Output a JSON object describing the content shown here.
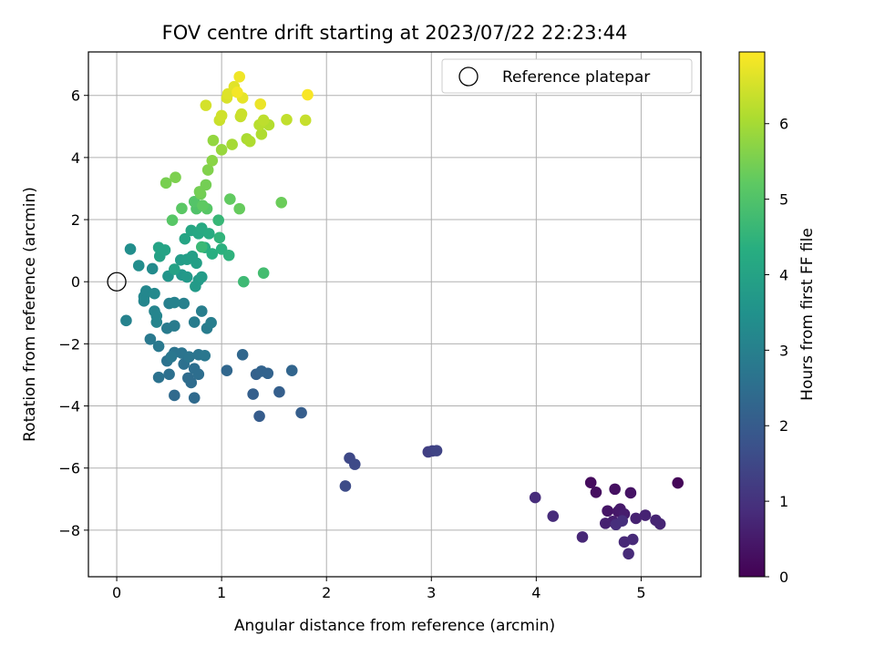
{
  "chart_data": {
    "type": "scatter",
    "title": "FOV centre drift starting at 2023/07/22 22:23:44",
    "xlabel": "Angular distance from reference (arcmin)",
    "ylabel": "Rotation from reference (arcmin)",
    "xlim": [
      -0.27,
      5.57
    ],
    "ylim": [
      -9.5,
      7.4
    ],
    "x_ticks": [
      0,
      1,
      2,
      3,
      4,
      5
    ],
    "y_ticks": [
      -8,
      -6,
      -4,
      -2,
      0,
      2,
      4,
      6
    ],
    "grid": true,
    "legend": {
      "position": "top-right",
      "entries": [
        "Reference platepar"
      ]
    },
    "reference_point": {
      "x": 0,
      "y": 0
    },
    "colorbar": {
      "label": "Hours from first FF file",
      "colormap": "viridis",
      "range": [
        0,
        6.95
      ],
      "ticks": [
        0,
        1,
        2,
        3,
        4,
        5,
        6
      ]
    },
    "points": [
      [
        5.35,
        -6.48,
        0.1
      ],
      [
        4.52,
        -6.47,
        0.2
      ],
      [
        4.57,
        -6.78,
        0.25
      ],
      [
        4.75,
        -6.68,
        0.3
      ],
      [
        4.9,
        -6.8,
        0.35
      ],
      [
        4.68,
        -7.38,
        0.4
      ],
      [
        4.78,
        -7.4,
        0.45
      ],
      [
        4.8,
        -7.32,
        0.5
      ],
      [
        4.84,
        -7.48,
        0.55
      ],
      [
        4.73,
        -7.72,
        0.6
      ],
      [
        4.66,
        -7.78,
        0.62
      ],
      [
        4.95,
        -7.62,
        0.65
      ],
      [
        5.04,
        -7.52,
        0.68
      ],
      [
        5.14,
        -7.68,
        0.7
      ],
      [
        5.18,
        -7.8,
        0.72
      ],
      [
        4.44,
        -8.22,
        0.75
      ],
      [
        4.84,
        -8.38,
        0.78
      ],
      [
        4.92,
        -8.3,
        0.8
      ],
      [
        4.88,
        -8.76,
        0.82
      ],
      [
        4.16,
        -7.55,
        0.85
      ],
      [
        3.99,
        -6.95,
        0.88
      ],
      [
        4.76,
        -7.82,
        0.9
      ],
      [
        4.82,
        -7.7,
        0.92
      ],
      [
        2.97,
        -5.48,
        1.3
      ],
      [
        3.01,
        -5.45,
        1.35
      ],
      [
        3.05,
        -5.44,
        1.4
      ],
      [
        2.22,
        -5.68,
        1.5
      ],
      [
        2.27,
        -5.88,
        1.55
      ],
      [
        2.18,
        -6.58,
        1.6
      ],
      [
        1.36,
        -4.33,
        2.0
      ],
      [
        1.76,
        -4.22,
        2.05
      ],
      [
        1.55,
        -3.55,
        2.1
      ],
      [
        1.3,
        -3.62,
        2.1
      ],
      [
        1.33,
        -2.98,
        2.15
      ],
      [
        1.38,
        -2.88,
        2.2
      ],
      [
        1.44,
        -2.95,
        2.2
      ],
      [
        1.67,
        -2.86,
        2.25
      ],
      [
        1.05,
        -2.86,
        2.3
      ],
      [
        1.2,
        -2.35,
        2.3
      ],
      [
        0.74,
        -3.74,
        2.4
      ],
      [
        0.55,
        -3.66,
        2.4
      ],
      [
        0.68,
        -3.1,
        2.45
      ],
      [
        0.71,
        -3.25,
        2.45
      ],
      [
        0.78,
        -2.98,
        2.5
      ],
      [
        0.74,
        -2.8,
        2.5
      ],
      [
        0.64,
        -2.65,
        2.55
      ],
      [
        0.5,
        -2.98,
        2.55
      ],
      [
        0.4,
        -3.08,
        2.6
      ],
      [
        0.48,
        -2.55,
        2.6
      ],
      [
        0.55,
        -2.28,
        2.65
      ],
      [
        0.62,
        -2.3,
        2.65
      ],
      [
        0.69,
        -2.42,
        2.7
      ],
      [
        0.78,
        -2.35,
        2.7
      ],
      [
        0.84,
        -2.38,
        2.75
      ],
      [
        0.52,
        -2.42,
        2.75
      ],
      [
        0.4,
        -2.08,
        2.8
      ],
      [
        0.32,
        -1.85,
        2.8
      ],
      [
        0.48,
        -1.5,
        2.85
      ],
      [
        0.55,
        -1.42,
        2.85
      ],
      [
        0.74,
        -1.3,
        2.9
      ],
      [
        0.86,
        -1.5,
        2.9
      ],
      [
        0.9,
        -1.32,
        2.95
      ],
      [
        0.81,
        -0.95,
        2.95
      ],
      [
        0.64,
        -0.7,
        3.0
      ],
      [
        0.5,
        -0.7,
        3.0
      ],
      [
        0.55,
        -0.67,
        3.05
      ],
      [
        0.09,
        -1.25,
        3.05
      ],
      [
        0.38,
        -1.3,
        3.1
      ],
      [
        0.36,
        -0.95,
        3.1
      ],
      [
        0.38,
        -1.1,
        3.15
      ],
      [
        0.26,
        -0.62,
        3.15
      ],
      [
        0.26,
        -0.48,
        3.2
      ],
      [
        0.28,
        -0.3,
        3.2
      ],
      [
        0.36,
        -0.38,
        3.25
      ],
      [
        0.34,
        0.42,
        3.3
      ],
      [
        0.21,
        0.52,
        3.35
      ],
      [
        0.13,
        1.05,
        3.4
      ],
      [
        0.49,
        0.18,
        3.6
      ],
      [
        0.62,
        0.22,
        3.65
      ],
      [
        0.67,
        0.15,
        3.7
      ],
      [
        0.75,
        -0.15,
        3.75
      ],
      [
        0.78,
        0.05,
        3.75
      ],
      [
        0.81,
        0.15,
        3.8
      ],
      [
        0.61,
        0.7,
        3.8
      ],
      [
        0.67,
        0.72,
        3.85
      ],
      [
        0.72,
        0.82,
        3.9
      ],
      [
        0.76,
        0.6,
        3.9
      ],
      [
        0.55,
        0.4,
        3.95
      ],
      [
        0.41,
        0.82,
        3.95
      ],
      [
        0.4,
        1.1,
        4.0
      ],
      [
        0.46,
        1.02,
        4.0
      ],
      [
        0.65,
        1.38,
        4.05
      ],
      [
        0.71,
        1.65,
        4.1
      ],
      [
        0.78,
        1.55,
        4.15
      ],
      [
        0.81,
        1.72,
        4.2
      ],
      [
        0.88,
        1.55,
        4.25
      ],
      [
        0.84,
        1.1,
        4.3
      ],
      [
        0.91,
        0.9,
        4.35
      ],
      [
        1.0,
        1.05,
        4.4
      ],
      [
        1.07,
        0.85,
        4.45
      ],
      [
        0.98,
        1.42,
        4.5
      ],
      [
        0.97,
        1.98,
        4.6
      ],
      [
        0.81,
        1.12,
        4.65
      ],
      [
        1.21,
        0.0,
        4.7
      ],
      [
        1.4,
        0.28,
        4.8
      ],
      [
        0.76,
        2.35,
        5.0
      ],
      [
        0.74,
        2.58,
        5.05
      ],
      [
        0.86,
        2.35,
        5.1
      ],
      [
        0.53,
        1.98,
        5.1
      ],
      [
        0.62,
        2.36,
        5.15
      ],
      [
        0.82,
        2.45,
        5.2
      ],
      [
        1.08,
        2.66,
        5.25
      ],
      [
        1.17,
        2.35,
        5.3
      ],
      [
        1.57,
        2.55,
        5.35
      ],
      [
        0.8,
        2.82,
        5.4
      ],
      [
        0.85,
        3.12,
        5.45
      ],
      [
        0.79,
        2.9,
        5.45
      ],
      [
        0.47,
        3.18,
        5.5
      ],
      [
        0.56,
        3.36,
        5.55
      ],
      [
        0.87,
        3.6,
        5.6
      ],
      [
        0.91,
        3.9,
        5.7
      ],
      [
        0.92,
        4.55,
        5.8
      ],
      [
        1.0,
        4.25,
        5.85
      ],
      [
        1.1,
        4.42,
        6.0
      ],
      [
        1.24,
        4.6,
        6.05
      ],
      [
        1.27,
        4.52,
        6.1
      ],
      [
        1.38,
        4.75,
        6.1
      ],
      [
        1.45,
        5.05,
        6.15
      ],
      [
        1.36,
        5.05,
        6.2
      ],
      [
        1.4,
        5.2,
        6.25
      ],
      [
        1.62,
        5.22,
        6.3
      ],
      [
        1.8,
        5.2,
        6.35
      ],
      [
        1.18,
        5.32,
        6.35
      ],
      [
        1.19,
        5.4,
        6.4
      ],
      [
        0.98,
        5.2,
        6.4
      ],
      [
        1.0,
        5.35,
        6.45
      ],
      [
        0.85,
        5.68,
        6.5
      ],
      [
        1.05,
        5.92,
        6.55
      ],
      [
        1.06,
        6.05,
        6.6
      ],
      [
        1.12,
        6.28,
        6.65
      ],
      [
        1.2,
        5.92,
        6.7
      ],
      [
        1.37,
        5.72,
        6.75
      ],
      [
        1.17,
        6.6,
        6.8
      ],
      [
        1.15,
        6.1,
        6.85
      ],
      [
        1.82,
        6.02,
        6.9
      ]
    ]
  }
}
